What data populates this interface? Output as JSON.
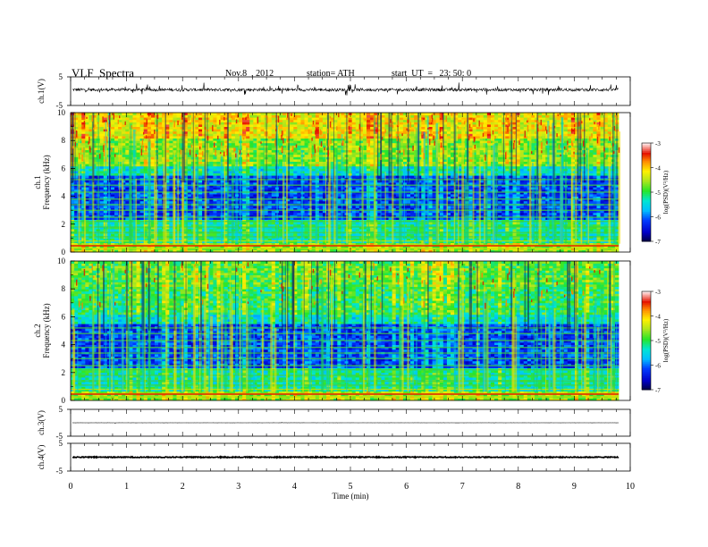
{
  "header": {
    "title": "VLF  Spectra",
    "date": "Nov.8  , 2012",
    "station": "station= ATH",
    "start": "start  UT  =   23: 50: 0"
  },
  "chart_data": [
    {
      "type": "line",
      "panel": "ch1-waveform",
      "ylabel": "ch.1(V)",
      "ylim": [
        -5,
        5
      ],
      "yticks": [
        "5",
        "-5"
      ],
      "xlim": [
        0,
        10
      ],
      "description_values": {
        "baseline_V": 0.5,
        "spike_range_V": [
          -1.5,
          2.5
        ]
      }
    },
    {
      "type": "heatmap",
      "panel": "ch1-spectrogram",
      "ylabel": "ch.1\nFrequency (kHz)",
      "ylim": [
        0,
        10
      ],
      "yticks": [
        "0",
        "2",
        "4",
        "6",
        "8",
        "10"
      ],
      "xlim": [
        0,
        9.8
      ],
      "colorbar": {
        "label": "log(PSD)(V²/Hz)",
        "range": [
          -7,
          -3
        ],
        "ticks": [
          "-3",
          "-4",
          "-5",
          "-6",
          "-7"
        ]
      }
    },
    {
      "type": "heatmap",
      "panel": "ch2-spectrogram",
      "ylabel": "ch.2\nFrequency (kHz)",
      "ylim": [
        0,
        10
      ],
      "yticks": [
        "0",
        "2",
        "4",
        "6",
        "8",
        "10"
      ],
      "xlim": [
        0,
        9.8
      ],
      "colorbar": {
        "label": "log(PSD)(V²/Hz)",
        "range": [
          -7,
          -3
        ],
        "ticks": [
          "-3",
          "-4",
          "-5",
          "-6",
          "-7"
        ]
      }
    },
    {
      "type": "line",
      "panel": "ch3-waveform",
      "ylabel": "ch.3(V)",
      "ylim": [
        -5,
        5
      ],
      "yticks": [
        "5",
        "-5"
      ],
      "xlim": [
        0,
        10
      ],
      "description_values": {
        "baseline_V": 0
      }
    },
    {
      "type": "line",
      "panel": "ch4-waveform",
      "ylabel": "ch.4(V)",
      "ylim": [
        -5,
        5
      ],
      "yticks": [
        "5",
        "-5"
      ],
      "xlim": [
        0,
        10
      ],
      "description_values": {
        "baseline_V": 0
      }
    }
  ],
  "xaxis": {
    "label": "Time  (min)",
    "ticks": [
      "0",
      "1",
      "2",
      "3",
      "4",
      "5",
      "6",
      "7",
      "8",
      "9",
      "10"
    ]
  }
}
